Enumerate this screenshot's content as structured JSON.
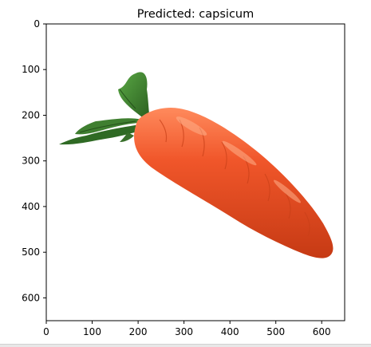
{
  "title": "Predicted: capsicum",
  "image": {
    "subject": "carrot",
    "x_range": [
      0,
      650
    ],
    "y_range": [
      0,
      650
    ]
  },
  "axes": {
    "x_ticks": [
      "0",
      "100",
      "200",
      "300",
      "400",
      "500",
      "600"
    ],
    "y_ticks": [
      "0",
      "100",
      "200",
      "300",
      "400",
      "500",
      "600"
    ]
  },
  "colors": {
    "carrot_body": "#f0562a",
    "carrot_shadow": "#d8401a",
    "carrot_highlight": "#ff8a5c",
    "leaf_dark": "#2e6b22",
    "leaf_light": "#4f9a3c",
    "axis": "#000000"
  }
}
